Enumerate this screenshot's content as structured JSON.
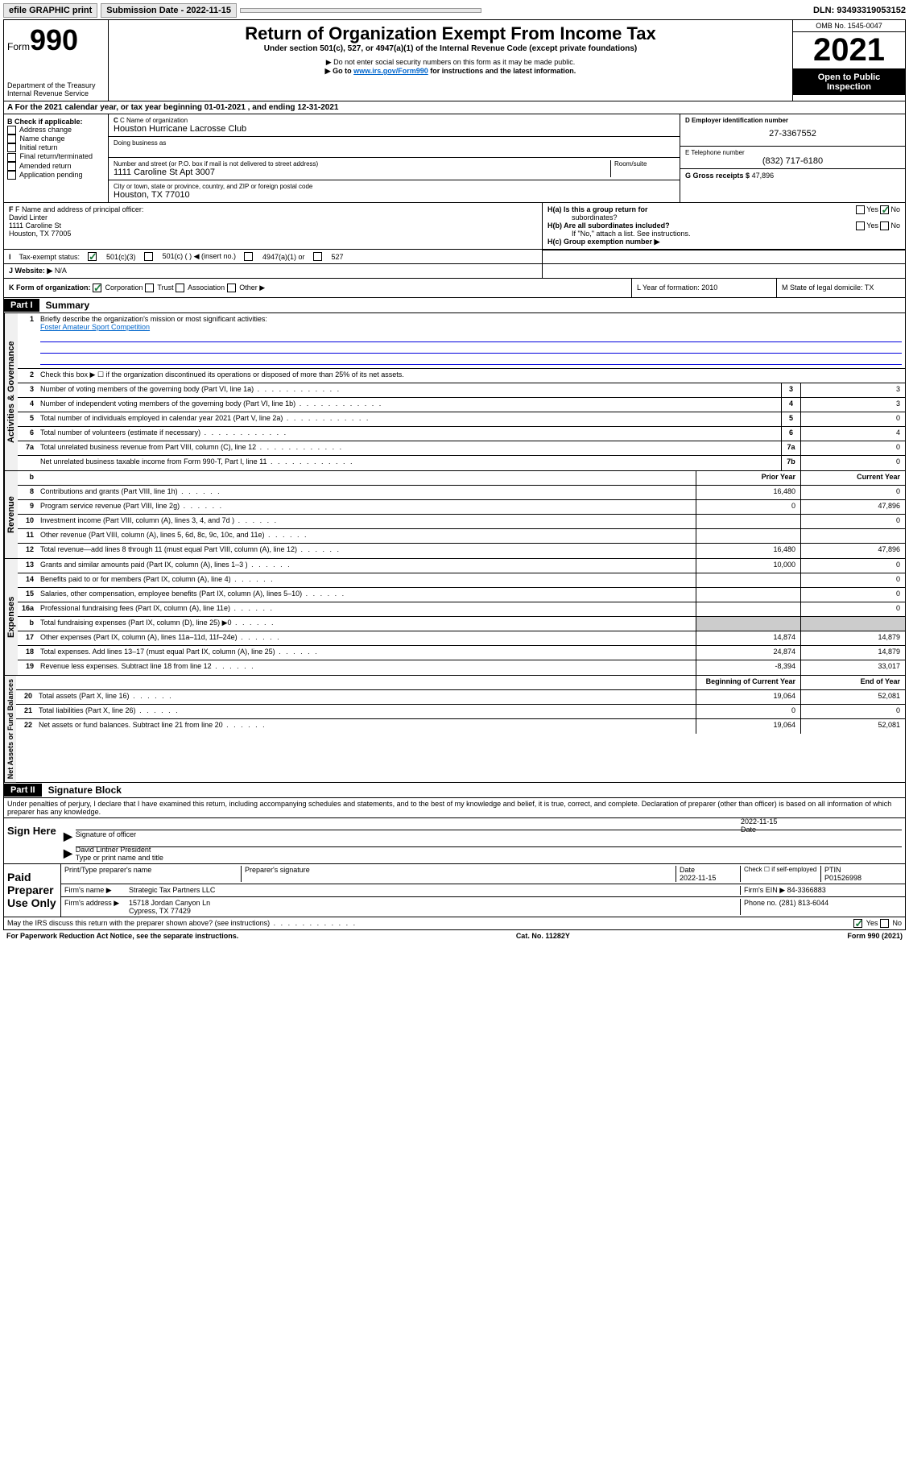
{
  "topbar": {
    "efile": "efile GRAPHIC print",
    "submission": "Submission Date - 2022-11-15",
    "dln": "DLN: 93493319053152"
  },
  "header": {
    "form_label": "Form",
    "form_num": "990",
    "dept": "Department of the Treasury",
    "irs": "Internal Revenue Service",
    "title": "Return of Organization Exempt From Income Tax",
    "subtitle": "Under section 501(c), 527, or 4947(a)(1) of the Internal Revenue Code (except private foundations)",
    "note1": "▶ Do not enter social security numbers on this form as it may be made public.",
    "note2_pre": "▶ Go to ",
    "note2_link": "www.irs.gov/Form990",
    "note2_post": " for instructions and the latest information.",
    "omb": "OMB No. 1545-0047",
    "year": "2021",
    "inspection": "Open to Public Inspection"
  },
  "section_a": "A For the 2021 calendar year, or tax year beginning 01-01-2021   , and ending 12-31-2021",
  "col_b": {
    "label": "B Check if applicable:",
    "items": [
      "Address change",
      "Name change",
      "Initial return",
      "Final return/terminated",
      "Amended return",
      "Application pending"
    ]
  },
  "col_c": {
    "name_label": "C Name of organization",
    "name": "Houston Hurricane Lacrosse Club",
    "dba_label": "Doing business as",
    "addr_label": "Number and street (or P.O. box if mail is not delivered to street address)",
    "room_label": "Room/suite",
    "addr": "1111 Caroline St Apt 3007",
    "city_label": "City or town, state or province, country, and ZIP or foreign postal code",
    "city": "Houston, TX  77010"
  },
  "col_d": {
    "ein_label": "D Employer identification number",
    "ein": "27-3367552",
    "phone_label": "E Telephone number",
    "phone": "(832) 717-6180",
    "gross_label": "G Gross receipts $",
    "gross": "47,896"
  },
  "row_f": {
    "label": "F Name and address of principal officer:",
    "name": "David Linter",
    "addr": "1111 Caroline St",
    "city": "Houston, TX  77005"
  },
  "row_h": {
    "a_label": "H(a)  Is this a group return for",
    "a_sub": "subordinates?",
    "b_label": "H(b)  Are all subordinates included?",
    "b_note": "If \"No,\" attach a list. See instructions.",
    "c_label": "H(c)  Group exemption number ▶"
  },
  "row_i": {
    "label": "Tax-exempt status:",
    "opt1": "501(c)(3)",
    "opt2": "501(c) (   ) ◀ (insert no.)",
    "opt3": "4947(a)(1) or",
    "opt4": "527"
  },
  "row_j": {
    "label": "Website: ▶",
    "val": "N/A"
  },
  "row_k": {
    "label": "K Form of organization:",
    "opts": [
      "Corporation",
      "Trust",
      "Association",
      "Other ▶"
    ],
    "l": "L Year of formation: 2010",
    "m": "M State of legal domicile: TX"
  },
  "part1": {
    "label": "Part I",
    "title": "Summary"
  },
  "governance": {
    "label": "Activities & Governance",
    "line1": "Briefly describe the organization's mission or most significant activities:",
    "mission": "Foster Amateur Sport Competition",
    "line2": "Check this box ▶ ☐  if the organization discontinued its operations or disposed of more than 25% of its net assets.",
    "lines": [
      {
        "n": "3",
        "d": "Number of voting members of the governing body (Part VI, line 1a)",
        "b": "3",
        "v": "3"
      },
      {
        "n": "4",
        "d": "Number of independent voting members of the governing body (Part VI, line 1b)",
        "b": "4",
        "v": "3"
      },
      {
        "n": "5",
        "d": "Total number of individuals employed in calendar year 2021 (Part V, line 2a)",
        "b": "5",
        "v": "0"
      },
      {
        "n": "6",
        "d": "Total number of volunteers (estimate if necessary)",
        "b": "6",
        "v": "4"
      },
      {
        "n": "7a",
        "d": "Total unrelated business revenue from Part VIII, column (C), line 12",
        "b": "7a",
        "v": "0"
      },
      {
        "n": "",
        "d": "Net unrelated business taxable income from Form 990-T, Part I, line 11",
        "b": "7b",
        "v": "0"
      }
    ]
  },
  "revenue": {
    "label": "Revenue",
    "header": {
      "n": "b",
      "prior": "Prior Year",
      "current": "Current Year"
    },
    "lines": [
      {
        "n": "8",
        "d": "Contributions and grants (Part VIII, line 1h)",
        "p": "16,480",
        "c": "0"
      },
      {
        "n": "9",
        "d": "Program service revenue (Part VIII, line 2g)",
        "p": "0",
        "c": "47,896"
      },
      {
        "n": "10",
        "d": "Investment income (Part VIII, column (A), lines 3, 4, and 7d )",
        "p": "",
        "c": "0"
      },
      {
        "n": "11",
        "d": "Other revenue (Part VIII, column (A), lines 5, 6d, 8c, 9c, 10c, and 11e)",
        "p": "",
        "c": ""
      },
      {
        "n": "12",
        "d": "Total revenue—add lines 8 through 11 (must equal Part VIII, column (A), line 12)",
        "p": "16,480",
        "c": "47,896"
      }
    ]
  },
  "expenses": {
    "label": "Expenses",
    "lines": [
      {
        "n": "13",
        "d": "Grants and similar amounts paid (Part IX, column (A), lines 1–3 )",
        "p": "10,000",
        "c": "0"
      },
      {
        "n": "14",
        "d": "Benefits paid to or for members (Part IX, column (A), line 4)",
        "p": "",
        "c": "0"
      },
      {
        "n": "15",
        "d": "Salaries, other compensation, employee benefits (Part IX, column (A), lines 5–10)",
        "p": "",
        "c": "0"
      },
      {
        "n": "16a",
        "d": "Professional fundraising fees (Part IX, column (A), line 11e)",
        "p": "",
        "c": "0"
      },
      {
        "n": "b",
        "d": "Total fundraising expenses (Part IX, column (D), line 25) ▶0",
        "p": "shaded",
        "c": "shaded"
      },
      {
        "n": "17",
        "d": "Other expenses (Part IX, column (A), lines 11a–11d, 11f–24e)",
        "p": "14,874",
        "c": "14,879"
      },
      {
        "n": "18",
        "d": "Total expenses. Add lines 13–17 (must equal Part IX, column (A), line 25)",
        "p": "24,874",
        "c": "14,879"
      },
      {
        "n": "19",
        "d": "Revenue less expenses. Subtract line 18 from line 12",
        "p": "-8,394",
        "c": "33,017"
      }
    ]
  },
  "netassets": {
    "label": "Net Assets or Fund Balances",
    "header": {
      "begin": "Beginning of Current Year",
      "end": "End of Year"
    },
    "lines": [
      {
        "n": "20",
        "d": "Total assets (Part X, line 16)",
        "p": "19,064",
        "c": "52,081"
      },
      {
        "n": "21",
        "d": "Total liabilities (Part X, line 26)",
        "p": "0",
        "c": "0"
      },
      {
        "n": "22",
        "d": "Net assets or fund balances. Subtract line 21 from line 20",
        "p": "19,064",
        "c": "52,081"
      }
    ]
  },
  "part2": {
    "label": "Part II",
    "title": "Signature Block"
  },
  "penalties": "Under penalties of perjury, I declare that I have examined this return, including accompanying schedules and statements, and to the best of my knowledge and belief, it is true, correct, and complete. Declaration of preparer (other than officer) is based on all information of which preparer has any knowledge.",
  "sign": {
    "label": "Sign Here",
    "sig_label": "Signature of officer",
    "date": "2022-11-15",
    "date_label": "Date",
    "name": "David Lintner President",
    "name_label": "Type or print name and title"
  },
  "preparer": {
    "label": "Paid Preparer Use Only",
    "name_label": "Print/Type preparer's name",
    "sig_label": "Preparer's signature",
    "date_label": "Date",
    "date": "2022-11-15",
    "check_label": "Check ☐ if self-employed",
    "ptin_label": "PTIN",
    "ptin": "P01526998",
    "firm_label": "Firm's name   ▶",
    "firm": "Strategic Tax Partners LLC",
    "ein_label": "Firm's EIN ▶",
    "ein": "84-3366883",
    "addr_label": "Firm's address ▶",
    "addr": "15718 Jordan Canyon Ln",
    "city": "Cypress, TX  77429",
    "phone_label": "Phone no.",
    "phone": "(281) 813-6044"
  },
  "may_irs": "May the IRS discuss this return with the preparer shown above? (see instructions)",
  "footer": {
    "left": "For Paperwork Reduction Act Notice, see the separate instructions.",
    "mid": "Cat. No. 11282Y",
    "right": "Form 990 (2021)"
  }
}
